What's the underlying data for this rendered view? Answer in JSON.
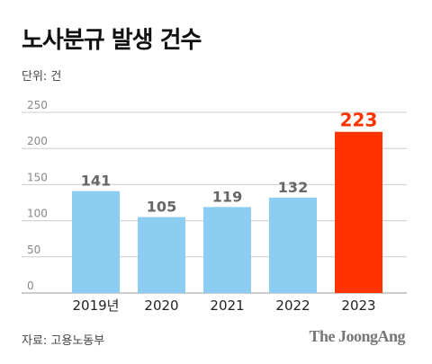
{
  "header": {
    "title": "노사분규 발생 건수",
    "unit_label": "단위: 건"
  },
  "footer": {
    "source": "자료: 고용노동부",
    "brand": "The JoongAng"
  },
  "colors": {
    "bar": "#8ecdf2",
    "highlight_bar": "#ff3300",
    "value_label": "#666666",
    "highlight_label": "#ff3300",
    "gridline": "#cccccc"
  },
  "chart_data": {
    "type": "bar",
    "categories": [
      "2019년",
      "2020",
      "2021",
      "2022",
      "2023"
    ],
    "values": [
      141,
      105,
      119,
      132,
      223
    ],
    "highlight_index": 4,
    "ylim": [
      0,
      250
    ],
    "yticks": [
      0,
      50,
      100,
      150,
      200,
      250
    ],
    "grid": true,
    "xlabel": "",
    "ylabel": ""
  }
}
